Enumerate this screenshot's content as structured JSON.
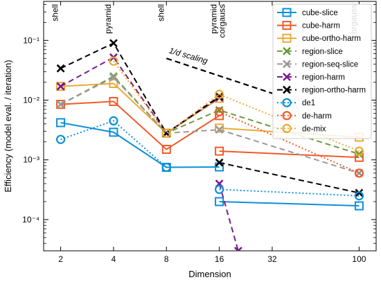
{
  "chart_data": {
    "type": "line",
    "xlabel": "Dimension",
    "ylabel": "Efficiency (model eval. / iteration)",
    "xscale": "log",
    "yscale": "log",
    "xlim": [
      1.6,
      125
    ],
    "ylim": [
      3e-05,
      0.45
    ],
    "xticks": [
      2,
      4,
      8,
      16,
      32,
      100
    ],
    "xtick_labels": [
      "2",
      "4",
      "8",
      "16",
      "32",
      "100"
    ],
    "yticks": [
      0.0001,
      0.001,
      0.01,
      0.1
    ],
    "ytick_labels": [
      "10⁻⁴",
      "10⁻³",
      "10⁻²",
      "10⁻¹"
    ],
    "legend_position": "top-right",
    "annotations": [
      {
        "text": "shell",
        "x": 2
      },
      {
        "text": "pyramid",
        "x": 4
      },
      {
        "text": "shell",
        "x": 8
      },
      {
        "text": "pyramid",
        "x": 16
      },
      {
        "text": "corgauss",
        "x": 16
      },
      {
        "text": "corgauss",
        "x": 100
      }
    ],
    "scaling_label": "1/d scaling",
    "scaling_line": {
      "x": [
        8,
        32
      ],
      "y": [
        0.05,
        0.013
      ]
    },
    "series": [
      {
        "name": "cube-slice",
        "color": "#0b8fd8",
        "marker": "square",
        "dash": "solid",
        "x": [
          2,
          4,
          8,
          16
        ],
        "y": [
          0.0042,
          0.0029,
          0.00075,
          0.00076
        ]
      },
      {
        "name": "cube-slice",
        "color": "#0b8fd8",
        "marker": "square",
        "dash": "solid",
        "legend": false,
        "x": [
          16,
          100
        ],
        "y": [
          0.0002,
          0.00017
        ]
      },
      {
        "name": "cube-harm",
        "color": "#f05a28",
        "marker": "square",
        "dash": "solid",
        "x": [
          2,
          4,
          8,
          16
        ],
        "y": [
          0.0085,
          0.0095,
          0.0015,
          0.0055
        ]
      },
      {
        "name": "cube-harm",
        "color": "#f05a28",
        "marker": "square",
        "dash": "solid",
        "legend": false,
        "x": [
          16,
          100
        ],
        "y": [
          0.0014,
          0.0011
        ]
      },
      {
        "name": "cube-ortho-harm",
        "color": "#eba937",
        "marker": "square",
        "dash": "solid",
        "x": [
          2,
          4,
          8,
          16
        ],
        "y": [
          0.017,
          0.019,
          0.0028,
          0.0107
        ]
      },
      {
        "name": "cube-ortho-harm",
        "color": "#eba937",
        "marker": "square",
        "dash": "solid",
        "legend": false,
        "x": [
          16,
          100
        ],
        "y": [
          0.0034,
          0.0024
        ]
      },
      {
        "name": "region-slice",
        "color": "#6a9a3a",
        "marker": "x",
        "dash": "dashed",
        "x": [
          2,
          4,
          8,
          16,
          100
        ],
        "y": [
          0.0085,
          0.025,
          0.0028,
          0.0068,
          0.00125
        ]
      },
      {
        "name": "region-seq-slice",
        "color": "#999999",
        "marker": "x",
        "dash": "dashed",
        "x": [
          2,
          4,
          8,
          16,
          100
        ],
        "y": [
          0.0085,
          0.024,
          0.0028,
          0.0032,
          0.0006
        ]
      },
      {
        "name": "region-harm",
        "color": "#7a1a8c",
        "marker": "x",
        "dash": "dashed",
        "x": [
          2,
          4,
          8,
          16
        ],
        "y": [
          0.017,
          0.052,
          0.0028,
          0.011
        ]
      },
      {
        "name": "region-harm",
        "color": "#7a1a8c",
        "marker": "x",
        "dash": "dashed",
        "legend": false,
        "x": [
          16,
          20.5
        ],
        "y": [
          0.0004,
          3e-05
        ]
      },
      {
        "name": "region-ortho-harm",
        "color": "#000000",
        "marker": "x",
        "dash": "dashed",
        "x": [
          2,
          4,
          8,
          16
        ],
        "y": [
          0.034,
          0.09,
          0.0028,
          0.0115
        ]
      },
      {
        "name": "region-ortho-harm",
        "color": "#000000",
        "marker": "x",
        "dash": "dashed",
        "legend": false,
        "x": [
          16,
          100
        ],
        "y": [
          0.0009,
          0.00028
        ]
      },
      {
        "name": "de1",
        "color": "#0b8fd8",
        "marker": "circle",
        "dash": "dotted",
        "x": [
          2,
          4,
          8
        ],
        "y": [
          0.0022,
          0.0045,
          0.00075
        ]
      },
      {
        "name": "de1",
        "color": "#0b8fd8",
        "marker": "circle",
        "dash": "dotted",
        "legend": false,
        "x": [
          16,
          100
        ],
        "y": [
          0.00032,
          0.00025
        ]
      },
      {
        "name": "de-harm",
        "color": "#f05a28",
        "marker": "circle",
        "dash": "dotted",
        "x": [
          16,
          100
        ],
        "y": [
          0.0064,
          0.0006
        ]
      },
      {
        "name": "de-mix",
        "color": "#eba937",
        "marker": "circle",
        "dash": "dotted",
        "x": [
          4,
          8,
          16,
          100
        ],
        "y": [
          0.045,
          0.0028,
          0.0125,
          0.0014
        ]
      }
    ]
  }
}
